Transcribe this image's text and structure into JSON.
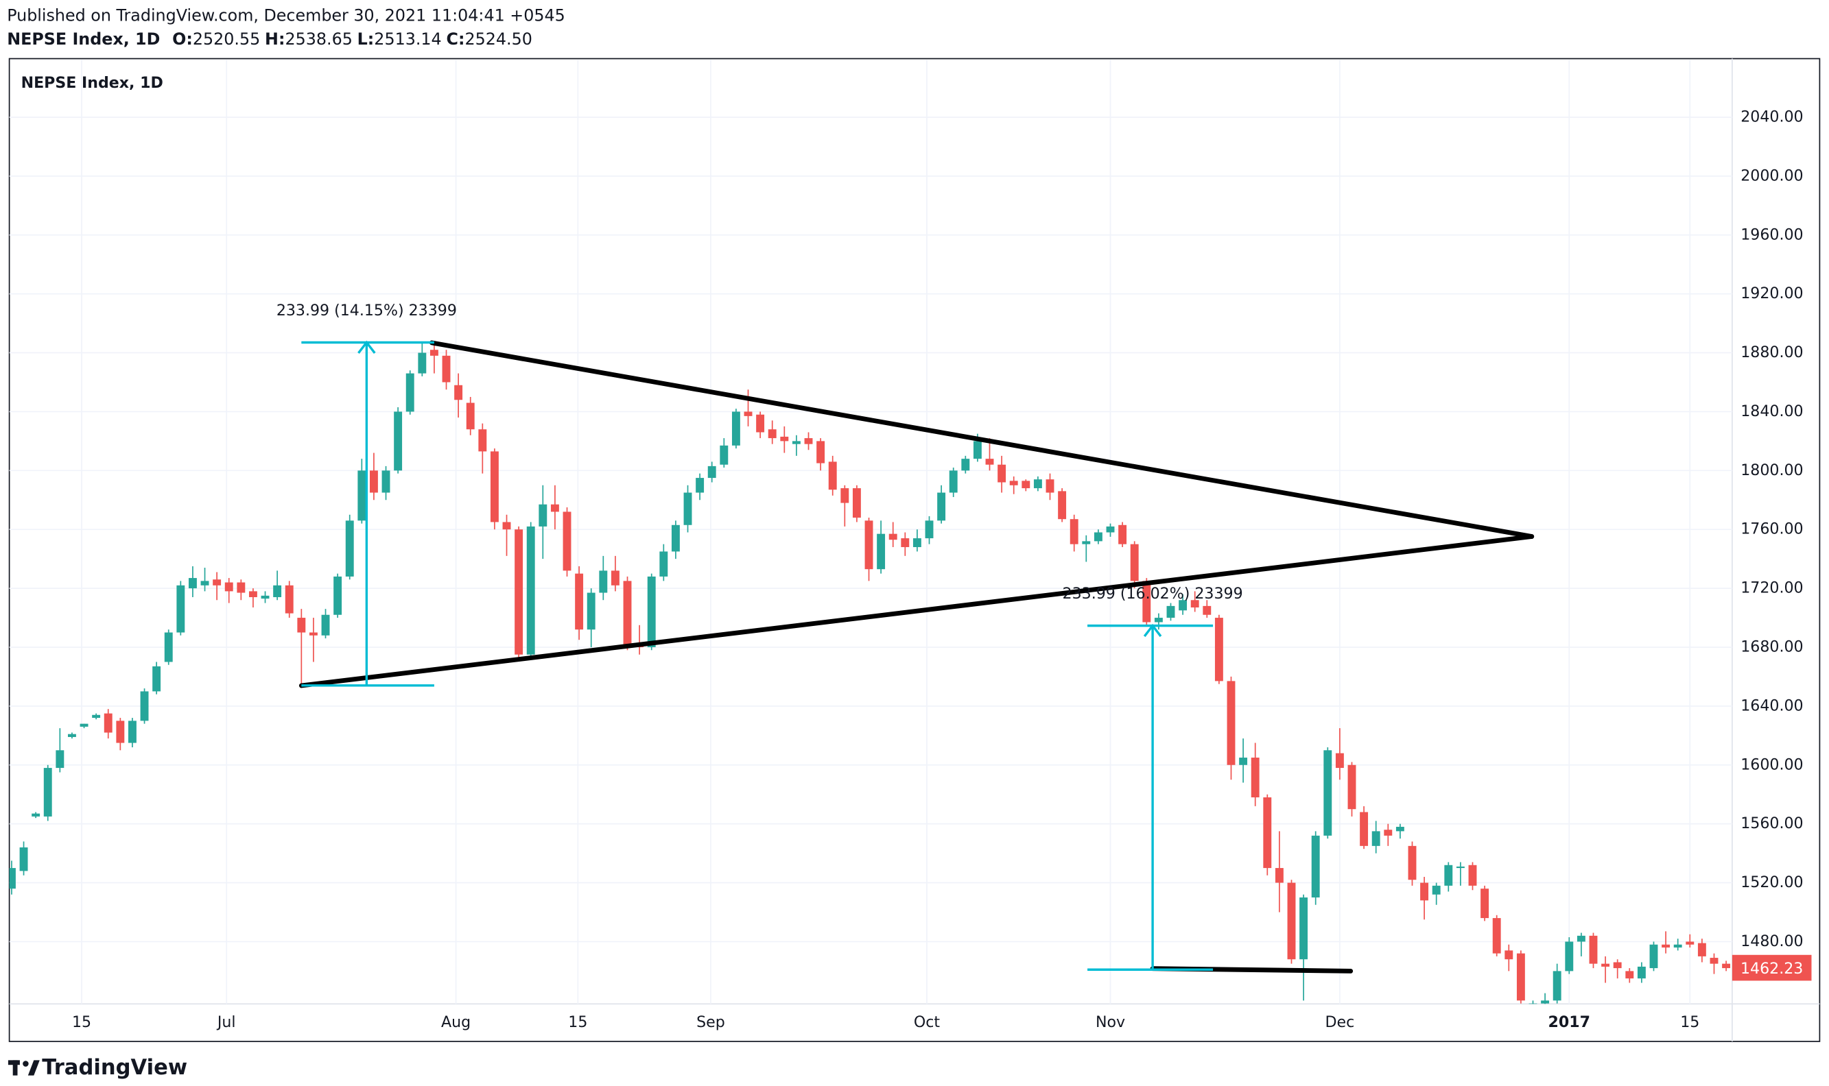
{
  "header": {
    "published": "Published on TradingView.com, December 30, 2021 11:04:41 +0545",
    "ohlc": [
      {
        "key": "O:",
        "value": "2520.55"
      },
      {
        "key": "H:",
        "value": "2538.65"
      },
      {
        "key": "L:",
        "value": "2513.14"
      },
      {
        "key": "C:",
        "value": "2524.50"
      }
    ]
  },
  "footer": {
    "brand": "TradingView"
  },
  "chart_data": {
    "type": "candlestick",
    "title": "NEPSE Index, 1D",
    "up_color": "#26a69a",
    "down_color": "#ef5350",
    "grid": true,
    "open": [
      1516,
      1528,
      1565,
      1565,
      1598,
      1619,
      1626,
      1632,
      1635,
      1630,
      1615,
      1630,
      1650,
      1670,
      1690,
      1720,
      1722,
      1726,
      1724,
      1724,
      1718,
      1713,
      1714,
      1722,
      1700,
      1690,
      1688,
      1702,
      1728,
      1766,
      1800,
      1785,
      1800,
      1840,
      1866,
      1882,
      1878,
      1858,
      1846,
      1828,
      1813,
      1765,
      1760,
      1675,
      1762,
      1777,
      1772,
      1730,
      1692,
      1717,
      1732,
      1725,
      1682,
      1680,
      1728,
      1745,
      1763,
      1785,
      1795,
      1804,
      1817,
      1840,
      1838,
      1828,
      1823,
      1818,
      1822,
      1820,
      1806,
      1788,
      1788,
      1766,
      1733,
      1757,
      1754,
      1748,
      1754,
      1766,
      1785,
      1800,
      1808,
      1808,
      1804,
      1793,
      1793,
      1788,
      1794,
      1786,
      1767,
      1750,
      1752,
      1758,
      1763,
      1750,
      1725,
      1697,
      1700,
      1705,
      1712,
      1708,
      1700,
      1657,
      1600,
      1605,
      1578,
      1530,
      1520,
      1468,
      1510,
      1552,
      1608,
      1600,
      1568,
      1545,
      1556,
      1555,
      1545,
      1520,
      1512,
      1518,
      1530,
      1532,
      1516,
      1496,
      1474,
      1472,
      1432,
      1438,
      1440,
      1460,
      1480,
      1484,
      1465,
      1466,
      1460,
      1455,
      1462,
      1478,
      1476,
      1480,
      1479,
      1469,
      1465
    ],
    "high": [
      1535,
      1548,
      1568,
      1600,
      1625,
      1622,
      1628,
      1635,
      1638,
      1632,
      1632,
      1652,
      1670,
      1692,
      1725,
      1735,
      1734,
      1731,
      1727,
      1726,
      1720,
      1718,
      1732,
      1725,
      1706,
      1700,
      1706,
      1730,
      1770,
      1808,
      1812,
      1803,
      1843,
      1868,
      1887,
      1886,
      1882,
      1866,
      1850,
      1832,
      1815,
      1770,
      1762,
      1765,
      1790,
      1790,
      1775,
      1735,
      1720,
      1742,
      1742,
      1728,
      1695,
      1730,
      1750,
      1766,
      1790,
      1798,
      1806,
      1822,
      1842,
      1855,
      1840,
      1834,
      1830,
      1824,
      1826,
      1822,
      1810,
      1790,
      1790,
      1768,
      1766,
      1765,
      1758,
      1760,
      1769,
      1790,
      1802,
      1810,
      1825,
      1822,
      1810,
      1796,
      1794,
      1796,
      1798,
      1788,
      1770,
      1756,
      1760,
      1764,
      1765,
      1752,
      1727,
      1703,
      1710,
      1716,
      1718,
      1712,
      1702,
      1660,
      1618,
      1615,
      1580,
      1555,
      1522,
      1512,
      1555,
      1612,
      1625,
      1602,
      1572,
      1562,
      1560,
      1560,
      1548,
      1524,
      1520,
      1534,
      1534,
      1534,
      1518,
      1498,
      1478,
      1474,
      1440,
      1445,
      1465,
      1483,
      1486,
      1486,
      1470,
      1468,
      1462,
      1466,
      1480,
      1487,
      1482,
      1485,
      1482,
      1472,
      1467
    ],
    "low": [
      1512,
      1525,
      1564,
      1562,
      1595,
      1618,
      1625,
      1631,
      1618,
      1610,
      1612,
      1628,
      1648,
      1668,
      1688,
      1714,
      1718,
      1712,
      1710,
      1712,
      1707,
      1710,
      1712,
      1700,
      1655,
      1670,
      1686,
      1700,
      1726,
      1764,
      1780,
      1780,
      1798,
      1838,
      1864,
      1866,
      1855,
      1836,
      1824,
      1798,
      1760,
      1742,
      1672,
      1673,
      1740,
      1760,
      1728,
      1685,
      1680,
      1712,
      1718,
      1678,
      1675,
      1678,
      1725,
      1740,
      1758,
      1780,
      1792,
      1802,
      1815,
      1830,
      1822,
      1818,
      1812,
      1810,
      1814,
      1800,
      1783,
      1762,
      1765,
      1725,
      1730,
      1748,
      1742,
      1745,
      1750,
      1764,
      1782,
      1798,
      1806,
      1800,
      1785,
      1784,
      1786,
      1786,
      1780,
      1765,
      1745,
      1738,
      1750,
      1755,
      1748,
      1720,
      1695,
      1692,
      1698,
      1702,
      1704,
      1700,
      1655,
      1590,
      1588,
      1572,
      1525,
      1500,
      1465,
      1440,
      1505,
      1550,
      1590,
      1565,
      1543,
      1540,
      1545,
      1550,
      1518,
      1495,
      1505,
      1514,
      1518,
      1515,
      1494,
      1470,
      1460,
      1438,
      1425,
      1430,
      1438,
      1458,
      1470,
      1462,
      1452,
      1455,
      1452,
      1452,
      1460,
      1472,
      1474,
      1476,
      1466,
      1458,
      1460
    ],
    "close": [
      1530,
      1544,
      1567,
      1598,
      1610,
      1621,
      1628,
      1634,
      1622,
      1615,
      1630,
      1650,
      1667,
      1690,
      1722,
      1727,
      1725,
      1722,
      1718,
      1717,
      1714,
      1715,
      1722,
      1703,
      1690,
      1688,
      1702,
      1728,
      1766,
      1800,
      1785,
      1800,
      1840,
      1866,
      1880,
      1878,
      1860,
      1848,
      1828,
      1813,
      1765,
      1760,
      1675,
      1762,
      1777,
      1772,
      1732,
      1692,
      1717,
      1732,
      1722,
      1680,
      1680,
      1728,
      1745,
      1763,
      1785,
      1795,
      1803,
      1817,
      1840,
      1837,
      1826,
      1822,
      1820,
      1820,
      1818,
      1805,
      1787,
      1778,
      1768,
      1733,
      1757,
      1753,
      1748,
      1754,
      1766,
      1785,
      1800,
      1808,
      1820,
      1804,
      1792,
      1790,
      1788,
      1794,
      1785,
      1767,
      1750,
      1752,
      1758,
      1762,
      1750,
      1725,
      1697,
      1700,
      1708,
      1712,
      1707,
      1702,
      1657,
      1600,
      1605,
      1578,
      1530,
      1520,
      1468,
      1510,
      1552,
      1610,
      1598,
      1570,
      1545,
      1555,
      1552,
      1558,
      1522,
      1508,
      1518,
      1532,
      1531,
      1518,
      1496,
      1472,
      1468,
      1440,
      1438,
      1440,
      1460,
      1480,
      1484,
      1465,
      1463,
      1462,
      1455,
      1463,
      1478,
      1476,
      1478,
      1478,
      1470,
      1465,
      1462
    ],
    "xlim": [
      -0.19,
      142.5
    ],
    "xticks": [
      {
        "value": 5.8,
        "label": "15"
      },
      {
        "value": 17.8,
        "label": "Jul"
      },
      {
        "value": 36.8,
        "label": "Aug"
      },
      {
        "value": 46.9,
        "label": "15"
      },
      {
        "value": 57.9,
        "label": "Sep"
      },
      {
        "value": 75.8,
        "label": "Oct"
      },
      {
        "value": 91,
        "label": "Nov"
      },
      {
        "value": 110,
        "label": "Dec"
      },
      {
        "value": 129,
        "label": "2017",
        "bold": true
      },
      {
        "value": 139,
        "label": "15"
      }
    ],
    "ylim": [
      1437.7,
      2079
    ],
    "yticks": [
      {
        "value": 1480,
        "label": "1480.00"
      },
      {
        "value": 1520,
        "label": "1520.00"
      },
      {
        "value": 1560,
        "label": "1560.00"
      },
      {
        "value": 1600,
        "label": "1600.00"
      },
      {
        "value": 1640,
        "label": "1640.00"
      },
      {
        "value": 1680,
        "label": "1680.00"
      },
      {
        "value": 1720,
        "label": "1720.00"
      },
      {
        "value": 1760,
        "label": "1760.00"
      },
      {
        "value": 1800,
        "label": "1800.00"
      },
      {
        "value": 1840,
        "label": "1840.00"
      },
      {
        "value": 1880,
        "label": "1880.00"
      },
      {
        "value": 1920,
        "label": "1920.00"
      },
      {
        "value": 1960,
        "label": "1960.00"
      },
      {
        "value": 2000,
        "label": "2000.00"
      },
      {
        "value": 2040,
        "label": "2040.00"
      }
    ],
    "last_price": 1462.23,
    "trend_lines": [
      {
        "points": [
          [
            34.8,
            1886.8
          ],
          [
            125.9,
            1755.2
          ]
        ]
      },
      {
        "points": [
          [
            24.0,
            1653.9
          ],
          [
            125.9,
            1755.2
          ]
        ]
      },
      {
        "points": [
          [
            94.5,
            1461.7
          ],
          [
            110.9,
            1460.0
          ]
        ]
      }
    ],
    "measures": [
      {
        "label": "233.99 (14.15%) 23399",
        "x": 29.4,
        "x1": 24.0,
        "x2": 35.0,
        "from": 1654,
        "to": 1887
      },
      {
        "label": "233.99 (16.02%) 23399",
        "x": 94.5,
        "x1": 89.1,
        "x2": 99.5,
        "from": 1461,
        "to": 1694.6
      }
    ]
  }
}
